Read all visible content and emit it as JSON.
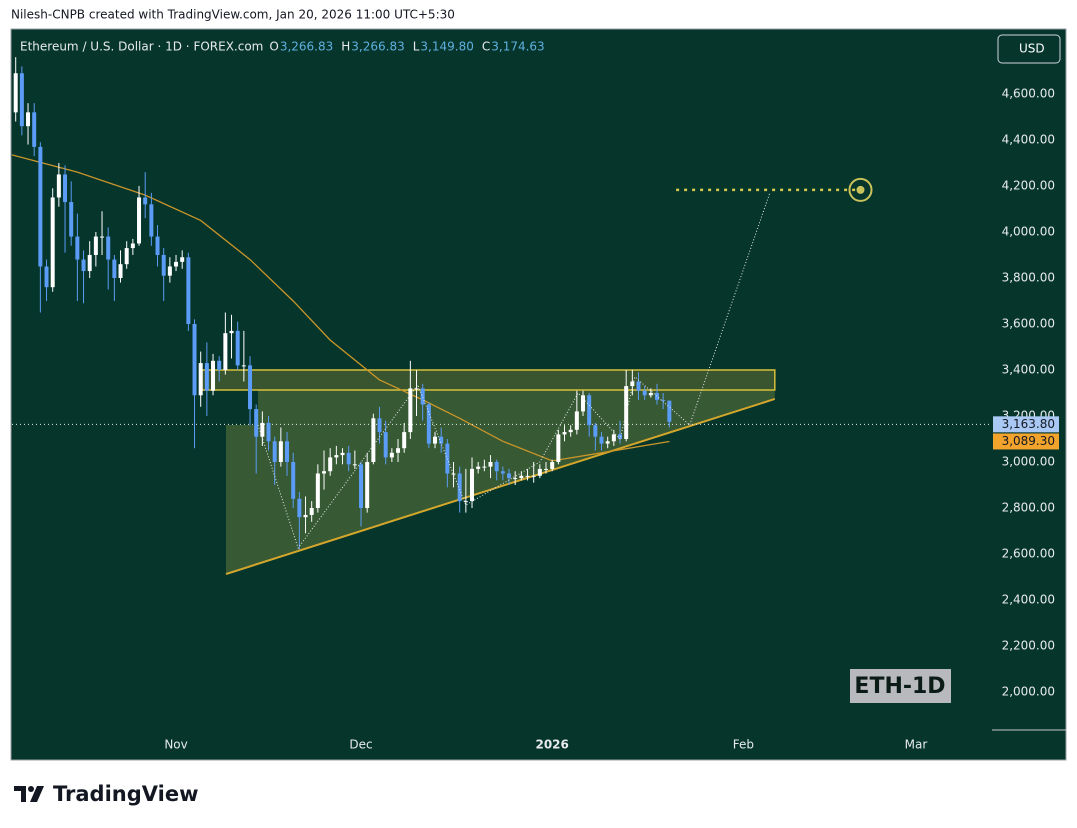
{
  "chart_data": {
    "type": "candlestick",
    "header": "Nilesh-CNPB created with TradingView.com, Jan 20, 2026 11:00 UTC+5:30",
    "title": "Ethereum / U.S. Dollar · 1D · FOREX.com",
    "ohlc_legend": [
      {
        "key": "O",
        "value": 3266.83,
        "label": "3,266.83"
      },
      {
        "key": "H",
        "value": 3266.83,
        "label": "3,266.83"
      },
      {
        "key": "L",
        "value": 3149.8,
        "label": "3,149.80"
      },
      {
        "key": "C",
        "value": 3174.63,
        "label": "3,174.63"
      }
    ],
    "currency": "USD",
    "up_color": "#ffffff",
    "down_color": "#5b9cf6",
    "open": [
      4520,
      4690,
      4460,
      4520,
      4370,
      3850,
      3760,
      4150,
      4250,
      4130,
      3980,
      3880,
      3830,
      3900,
      3980,
      3980,
      3880,
      3800,
      3860,
      3930,
      3950,
      4150,
      4120,
      3980,
      3900,
      3810,
      3850,
      3870,
      3890,
      3600,
      3290,
      3430,
      3310,
      3440,
      3400,
      3560,
      3570,
      3420,
      3420,
      3230,
      3110,
      3170,
      3090,
      3000,
      3090,
      3000,
      2840,
      2760,
      2770,
      2800,
      2950,
      2960,
      3020,
      3030,
      3040,
      2990,
      2990,
      2800,
      3000,
      3190,
      3130,
      3020,
      3040,
      3060,
      3130,
      3320,
      3320,
      3250,
      3080,
      3110,
      3080,
      2950,
      2950,
      2830,
      2830,
      2970,
      2980,
      2980,
      3000,
      2960,
      2950,
      2930,
      2930,
      2940,
      2940,
      2940,
      2970,
      2970,
      3000,
      3120,
      3130,
      3140,
      3220,
      3290,
      3160,
      3110,
      3080,
      3090,
      3120,
      3100,
      3330,
      3350,
      3310,
      3290,
      3300,
      3270,
      3266.83
    ],
    "high": [
      4760,
      4720,
      4560,
      4560,
      4390,
      3880,
      4190,
      4300,
      4290,
      4220,
      4080,
      3920,
      3960,
      4000,
      4090,
      4020,
      3900,
      3920,
      3960,
      3970,
      4200,
      4260,
      4170,
      4030,
      3930,
      3890,
      3900,
      3920,
      3910,
      3620,
      3480,
      3520,
      3470,
      3460,
      3650,
      3640,
      3610,
      3570,
      3460,
      3250,
      3220,
      3200,
      3110,
      3150,
      3130,
      3040,
      2870,
      2850,
      2830,
      2990,
      3050,
      3060,
      3070,
      3060,
      3070,
      3050,
      3000,
      3040,
      3210,
      3240,
      3180,
      3060,
      3100,
      3170,
      3440,
      3400,
      3340,
      3260,
      3130,
      3150,
      3100,
      3000,
      2980,
      2970,
      3020,
      3000,
      3010,
      3030,
      3010,
      2980,
      2970,
      2960,
      2960,
      2970,
      3000,
      2990,
      3000,
      3010,
      3140,
      3160,
      3160,
      3310,
      3310,
      3300,
      3170,
      3130,
      3110,
      3140,
      3180,
      3400,
      3400,
      3390,
      3330,
      3320,
      3340,
      3300,
      3266.83
    ],
    "low": [
      4480,
      4420,
      4380,
      4330,
      3650,
      3700,
      3740,
      4110,
      3910,
      3940,
      3700,
      3690,
      3800,
      3850,
      3900,
      3750,
      3700,
      3780,
      3840,
      3900,
      3940,
      4060,
      3940,
      3850,
      3700,
      3780,
      3830,
      3840,
      3570,
      3060,
      3240,
      3200,
      3290,
      3350,
      3380,
      3450,
      3400,
      3350,
      3160,
      2950,
      3070,
      3050,
      2900,
      2980,
      2940,
      2800,
      2620,
      2690,
      2740,
      2780,
      2880,
      2940,
      2990,
      2990,
      2960,
      2970,
      2720,
      2780,
      2990,
      3080,
      2990,
      3000,
      3000,
      3040,
      3100,
      3200,
      3180,
      3060,
      3060,
      3040,
      2890,
      2890,
      2780,
      2780,
      2800,
      2950,
      2960,
      2930,
      2920,
      2920,
      2900,
      2900,
      2920,
      2920,
      2910,
      2930,
      2950,
      2960,
      2990,
      3090,
      3110,
      3120,
      3200,
      3110,
      3050,
      3050,
      3060,
      3070,
      3080,
      3090,
      3290,
      3270,
      3270,
      3280,
      3250,
      3230,
      3149.8
    ],
    "close": [
      4690,
      4460,
      4520,
      4370,
      3850,
      3760,
      4150,
      4250,
      4130,
      3980,
      3880,
      3830,
      3900,
      3980,
      3980,
      3880,
      3800,
      3860,
      3930,
      3950,
      4150,
      4120,
      3980,
      3900,
      3810,
      3850,
      3870,
      3890,
      3600,
      3290,
      3430,
      3310,
      3440,
      3400,
      3560,
      3570,
      3420,
      3420,
      3230,
      3110,
      3170,
      3090,
      3000,
      3090,
      3000,
      2840,
      2760,
      2770,
      2800,
      2950,
      2960,
      3020,
      3030,
      3040,
      2990,
      2990,
      2800,
      3000,
      3190,
      3130,
      3020,
      3040,
      3060,
      3130,
      3320,
      3320,
      3250,
      3080,
      3110,
      3080,
      2950,
      2950,
      2830,
      2830,
      2970,
      2980,
      2980,
      3000,
      2960,
      2950,
      2930,
      2930,
      2940,
      2940,
      2940,
      2970,
      2970,
      3000,
      3120,
      3130,
      3140,
      3220,
      3290,
      3160,
      3110,
      3080,
      3090,
      3120,
      3100,
      3330,
      3350,
      3310,
      3290,
      3300,
      3270,
      3266.83,
      3174.63
    ],
    "xlim": [
      -0.6,
      158
    ],
    "xticks": [
      {
        "value": 26,
        "label": "Nov"
      },
      {
        "value": 56,
        "label": "Dec"
      },
      {
        "value": 87,
        "label": "2026"
      },
      {
        "value": 118,
        "label": "Feb"
      },
      {
        "value": 146,
        "label": "Mar"
      }
    ],
    "ylim": [
      1835,
      4878
    ],
    "yticks": [
      {
        "value": 2000,
        "label": "2,000.00"
      },
      {
        "value": 2200,
        "label": "2,200.00"
      },
      {
        "value": 2400,
        "label": "2,400.00"
      },
      {
        "value": 2600,
        "label": "2,600.00"
      },
      {
        "value": 2800,
        "label": "2,800.00"
      },
      {
        "value": 3000,
        "label": "3,000.00"
      },
      {
        "value": 3200,
        "label": "3,200.00"
      },
      {
        "value": 3400,
        "label": "3,400.00"
      },
      {
        "value": 3600,
        "label": "3,600.00"
      },
      {
        "value": 3800,
        "label": "3,800.00"
      },
      {
        "value": 4000,
        "label": "4,000.00"
      },
      {
        "value": 4200,
        "label": "4,200.00"
      },
      {
        "value": 4400,
        "label": "4,400.00"
      },
      {
        "value": 4600,
        "label": "4,600.00"
      }
    ],
    "grid": false,
    "moving_average": {
      "color": "#c9952a",
      "x": [
        -0.6,
        10,
        21,
        30,
        38,
        45,
        51,
        59,
        66,
        72,
        79,
        87,
        95,
        106
      ],
      "values": [
        4335,
        4260,
        4160,
        4050,
        3880,
        3700,
        3530,
        3357,
        3270,
        3190,
        3090,
        3005,
        3040,
        3089.3
      ]
    },
    "price_line": {
      "value": 3163.8,
      "label": "3,163.80"
    },
    "ma_last": {
      "value": 3089.3,
      "label": "3,089.30"
    },
    "annotations": {
      "pattern_area": {
        "x": [
          34.1,
          34.1,
          123.1,
          123.1,
          39.3,
          39.3
        ],
        "y": [
          3161,
          2513,
          3274,
          3313,
          3313,
          3161
        ]
      },
      "resistance_zone": {
        "x": [
          30.2,
          123.1
        ],
        "y": [
          3313,
          3400
        ]
      },
      "support_line": {
        "x": [
          34.1,
          123.1
        ],
        "y": [
          2513,
          3274
        ]
      },
      "path": {
        "x": [
          39.3,
          45.8,
          65.2,
          73,
          85,
          91.2,
          98,
          100.4,
          109.3,
          122.3
        ],
        "y": [
          3161,
          2626,
          3335,
          2813,
          3000,
          3300,
          3100,
          3370,
          3161,
          4170
        ]
      },
      "target": {
        "x": [
          107.1,
          137
        ],
        "y": [
          4183,
          4183
        ]
      }
    },
    "watermark": "ETH-1D",
    "brand": "TradingView"
  }
}
